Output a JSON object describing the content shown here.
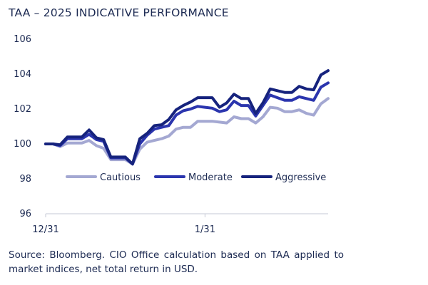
{
  "chart_data": {
    "type": "line",
    "title": "TAA – 2025 INDICATIVE PERFORMANCE",
    "xlabel": "",
    "ylabel": "",
    "ylim": [
      96,
      106
    ],
    "yticks": [
      "96",
      "98",
      "100",
      "102",
      "104",
      "106"
    ],
    "xticks": [
      {
        "label": "12/31",
        "index": 0
      },
      {
        "label": "1/31",
        "index": 22
      }
    ],
    "grid": false,
    "legend_position": "center",
    "series": [
      {
        "name": "Cautious",
        "color": "#a4a8d2",
        "values": [
          100.0,
          100.0,
          99.85,
          100.05,
          100.05,
          100.05,
          100.2,
          99.9,
          99.75,
          99.1,
          99.1,
          99.1,
          98.85,
          99.7,
          100.1,
          100.2,
          100.3,
          100.45,
          100.85,
          100.95,
          100.95,
          101.3,
          101.3,
          101.3,
          101.25,
          101.2,
          101.55,
          101.45,
          101.45,
          101.2,
          101.55,
          102.1,
          102.05,
          101.85,
          101.85,
          101.95,
          101.75,
          101.65,
          102.3,
          102.6
        ]
      },
      {
        "name": "Moderate",
        "color": "#2b35ae",
        "values": [
          100.0,
          100.0,
          99.9,
          100.3,
          100.3,
          100.3,
          100.55,
          100.25,
          100.15,
          99.2,
          99.2,
          99.2,
          98.85,
          100.0,
          100.5,
          100.85,
          100.95,
          101.05,
          101.65,
          101.9,
          102.0,
          102.15,
          102.1,
          102.05,
          101.85,
          101.95,
          102.45,
          102.2,
          102.2,
          101.6,
          102.2,
          102.8,
          102.65,
          102.5,
          102.5,
          102.7,
          102.6,
          102.5,
          103.25,
          103.5
        ]
      },
      {
        "name": "Aggressive",
        "color": "#16237d",
        "values": [
          100.0,
          100.0,
          99.95,
          100.4,
          100.4,
          100.4,
          100.8,
          100.35,
          100.25,
          99.25,
          99.25,
          99.25,
          98.85,
          100.3,
          100.6,
          101.05,
          101.1,
          101.4,
          101.95,
          102.2,
          102.4,
          102.65,
          102.65,
          102.65,
          102.1,
          102.35,
          102.85,
          102.6,
          102.6,
          101.75,
          102.35,
          103.15,
          103.05,
          102.95,
          102.95,
          103.3,
          103.15,
          103.1,
          103.95,
          104.2
        ]
      }
    ]
  },
  "source_note": "Source: Bloomberg. CIO Office calculation based on TAA applied to market indices, net total return in USD."
}
